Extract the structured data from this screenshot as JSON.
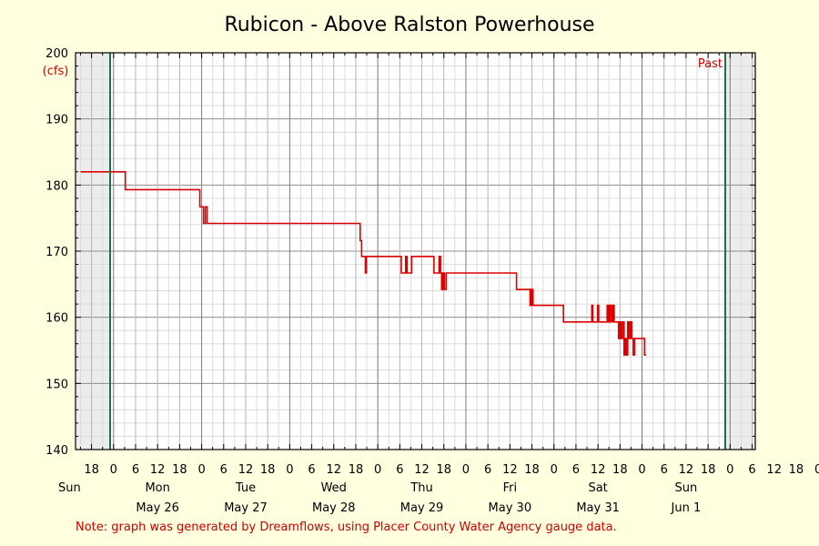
{
  "chart_data": {
    "type": "line",
    "title": "Rubicon - Above Ralston Powerhouse",
    "ylabel": "(cfs)",
    "ylim": [
      140,
      200
    ],
    "yticks": [
      140,
      150,
      160,
      170,
      180,
      190,
      200
    ],
    "x_range_hours": [
      -9,
      174
    ],
    "x_hour_ticks": [
      "18",
      "0",
      "6",
      "12",
      "18",
      "0",
      "6",
      "12",
      "18",
      "0",
      "6",
      "12",
      "18",
      "0",
      "6",
      "12",
      "18",
      "0",
      "6",
      "12",
      "18",
      "0",
      "6",
      "12",
      "18",
      "0",
      "6",
      "12",
      "18",
      "0",
      "6",
      "12",
      "18",
      "0",
      "6"
    ],
    "day_labels": [
      "Sun",
      "Mon",
      "Tue",
      "Wed",
      "Thu",
      "Fri",
      "Sat",
      "Sun"
    ],
    "date_labels": [
      "May 26",
      "May 27",
      "May 28",
      "May 29",
      "May 30",
      "May 31",
      "Jun 1"
    ],
    "past_label": "Past",
    "note": "Note: graph was generated by Dreamflows, using Placer County Water Agency gauge data.",
    "grid": true,
    "line_color": "#dd0000",
    "series": [
      {
        "points": [
          [
            -9,
            182
          ],
          [
            3.2,
            182
          ],
          [
            3.2,
            179.3
          ],
          [
            23.5,
            179.3
          ],
          [
            23.5,
            176.7
          ],
          [
            24.5,
            176.7
          ],
          [
            24.5,
            174.2
          ],
          [
            25,
            174.2
          ],
          [
            25,
            176.7
          ],
          [
            25.5,
            176.7
          ],
          [
            25.5,
            174.2
          ],
          [
            67.2,
            174.2
          ],
          [
            67.2,
            171.6
          ],
          [
            67.6,
            171.6
          ],
          [
            67.6,
            169.2
          ],
          [
            68.6,
            169.2
          ],
          [
            68.6,
            166.7
          ],
          [
            68.9,
            166.7
          ],
          [
            68.9,
            169.2
          ],
          [
            78.4,
            169.2
          ],
          [
            78.4,
            166.7
          ],
          [
            79.6,
            166.7
          ],
          [
            79.6,
            169.2
          ],
          [
            80,
            169.2
          ],
          [
            80,
            166.7
          ],
          [
            81.2,
            166.7
          ],
          [
            81.2,
            169.2
          ],
          [
            87.3,
            169.2
          ],
          [
            87.3,
            166.7
          ],
          [
            88.7,
            166.7
          ],
          [
            88.7,
            169.2
          ],
          [
            89.1,
            169.2
          ],
          [
            89.1,
            166.7
          ],
          [
            89.4,
            166.7
          ],
          [
            89.4,
            164.2
          ],
          [
            89.8,
            164.2
          ],
          [
            89.8,
            166.7
          ],
          [
            90.1,
            166.7
          ],
          [
            90.1,
            164.2
          ],
          [
            90.6,
            164.2
          ],
          [
            90.6,
            166.7
          ],
          [
            109.8,
            166.7
          ],
          [
            109.8,
            164.2
          ],
          [
            113.5,
            164.2
          ],
          [
            113.5,
            161.8
          ],
          [
            113.9,
            161.8
          ],
          [
            113.9,
            164.2
          ],
          [
            114.3,
            164.2
          ],
          [
            114.3,
            161.8
          ],
          [
            122.6,
            161.8
          ],
          [
            122.6,
            159.3
          ],
          [
            130.3,
            159.3
          ],
          [
            130.3,
            161.8
          ],
          [
            130.6,
            161.8
          ],
          [
            130.6,
            159.3
          ],
          [
            131.9,
            159.3
          ],
          [
            131.9,
            161.8
          ],
          [
            132.2,
            161.8
          ],
          [
            132.2,
            159.3
          ],
          [
            134.5,
            159.3
          ],
          [
            134.5,
            161.8
          ],
          [
            134.9,
            161.8
          ],
          [
            134.9,
            159.3
          ],
          [
            135.3,
            159.3
          ],
          [
            135.3,
            161.8
          ],
          [
            135.7,
            161.8
          ],
          [
            135.7,
            159.3
          ],
          [
            136.1,
            159.3
          ],
          [
            136.1,
            161.8
          ],
          [
            136.4,
            161.8
          ],
          [
            136.4,
            159.3
          ],
          [
            137.6,
            159.3
          ],
          [
            137.6,
            156.8
          ],
          [
            138,
            156.8
          ],
          [
            138,
            159.3
          ],
          [
            138.3,
            159.3
          ],
          [
            138.3,
            156.8
          ],
          [
            138.7,
            156.8
          ],
          [
            138.7,
            159.3
          ],
          [
            139.1,
            159.3
          ],
          [
            139.1,
            154.3
          ],
          [
            139.4,
            154.3
          ],
          [
            139.4,
            156.8
          ],
          [
            139.8,
            156.8
          ],
          [
            139.8,
            154.3
          ],
          [
            140.1,
            154.3
          ],
          [
            140.1,
            159.3
          ],
          [
            140.5,
            159.3
          ],
          [
            140.5,
            156.8
          ],
          [
            140.9,
            156.8
          ],
          [
            140.9,
            159.3
          ],
          [
            141.2,
            159.3
          ],
          [
            141.2,
            156.8
          ],
          [
            141.6,
            156.8
          ],
          [
            141.6,
            154.3
          ],
          [
            142,
            154.3
          ],
          [
            142,
            156.8
          ],
          [
            144.7,
            156.8
          ],
          [
            144.7,
            154.3
          ],
          [
            145.1,
            154.3
          ]
        ]
      }
    ]
  }
}
